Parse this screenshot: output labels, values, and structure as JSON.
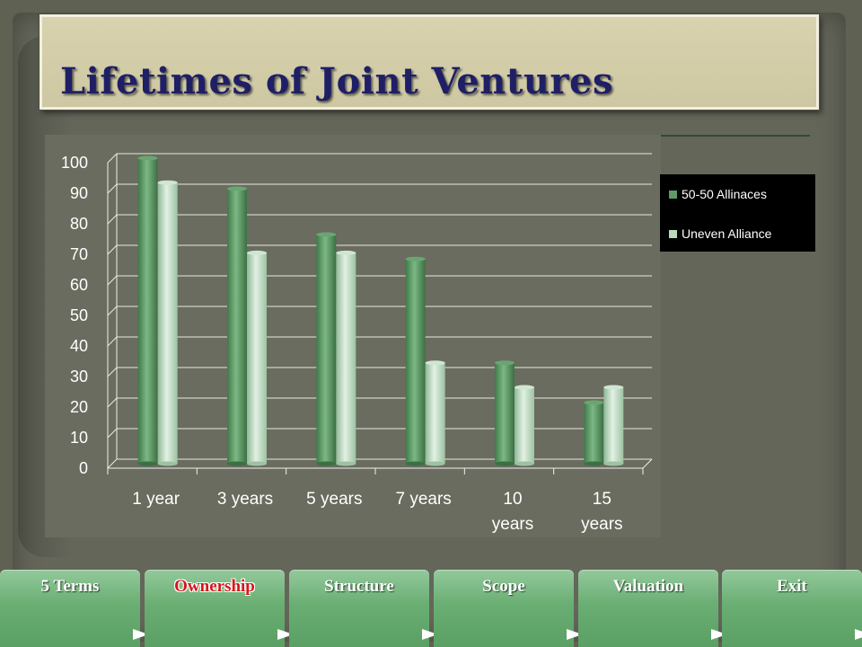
{
  "title": "Lifetimes of Joint Ventures",
  "colors": {
    "series1": "#5f9a67",
    "series2": "#b8d9bc",
    "legend_bg": "#000000",
    "title": "#1f1f66",
    "nav": "#6aae73"
  },
  "chart_data": {
    "type": "bar",
    "categories": [
      "1 year",
      "3 years",
      "5 years",
      "7 years",
      "10 years",
      "15 years"
    ],
    "series": [
      {
        "name": "50-50 Allinaces",
        "values": [
          100,
          90,
          75,
          67,
          33,
          20
        ]
      },
      {
        "name": "Uneven Alliance",
        "values": [
          92,
          69,
          69,
          33,
          25,
          25
        ]
      }
    ],
    "ylim": [
      0,
      100
    ],
    "yticks": [
      "0",
      "10",
      "20",
      "30",
      "40",
      "50",
      "60",
      "70",
      "80",
      "90",
      "100"
    ],
    "grid": true,
    "legend_position": "right"
  },
  "nav": [
    {
      "label": "5 Terms",
      "active": false
    },
    {
      "label": "Ownership",
      "active": true
    },
    {
      "label": "Structure",
      "active": false
    },
    {
      "label": "Scope",
      "active": false
    },
    {
      "label": "Valuation",
      "active": false
    },
    {
      "label": "Exit",
      "active": false
    }
  ]
}
